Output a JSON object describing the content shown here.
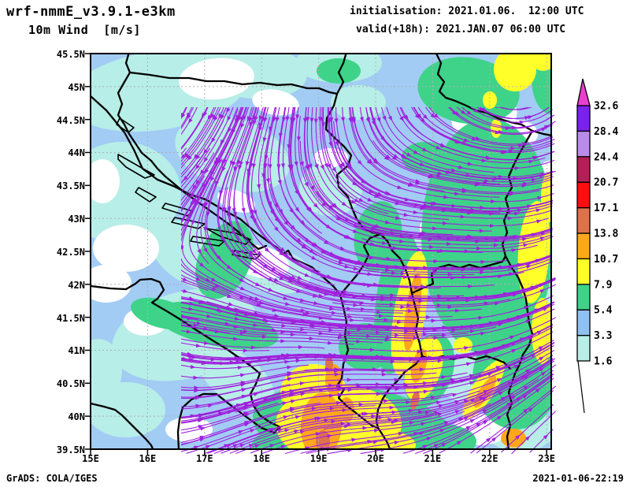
{
  "header": {
    "model": "wrf-nmmE_v3.9.1-e3km",
    "product": "10m Wind  [m/s]",
    "init_label": "initialisation: 2021.01.06.  12:00 UTC",
    "valid_label": "valid(+18h): 2021.JAN.07 06:00 UTC"
  },
  "footer": {
    "credit": "GrADS: COLA/IGES",
    "timestamp": "2021-01-06-22:19"
  },
  "axes": {
    "lat_ticks": [
      "45.5N",
      "45N",
      "44.5N",
      "44N",
      "43.5N",
      "43N",
      "42.5N",
      "42N",
      "41.5N",
      "41N",
      "40.5N",
      "40N",
      "39.5N"
    ],
    "lon_ticks": [
      "15E",
      "16E",
      "17E",
      "18E",
      "19E",
      "20E",
      "21E",
      "22E",
      "23E"
    ]
  },
  "colorbar": {
    "unit": "m/s",
    "tick_labels": [
      "1.6",
      "3.3",
      "5.4",
      "7.9",
      "10.7",
      "13.8",
      "17.1",
      "20.7",
      "24.4",
      "28.4",
      "32.6"
    ],
    "segment_colors": [
      "#b7eee7",
      "#8fc1f2",
      "#3ed389",
      "#ffff29",
      "#ffa71c",
      "#e0714b",
      "#fa0f0f",
      "#b22055",
      "#b98bea",
      "#7b22ea"
    ],
    "overflow_color": "#e83fd0",
    "underflow_color": "#ffffff"
  },
  "map": {
    "palette": {
      "base": "#a2ccf4",
      "cyan": "#b7eee7",
      "white": "#ffffff",
      "green": "#3ed389",
      "yellow": "#ffff29",
      "orange": "#ffa71c",
      "salmon": "#e0714b"
    },
    "stream_color": "#a020dd",
    "grid_color": "#b0b0b0",
    "coast_color": "#000000"
  }
}
